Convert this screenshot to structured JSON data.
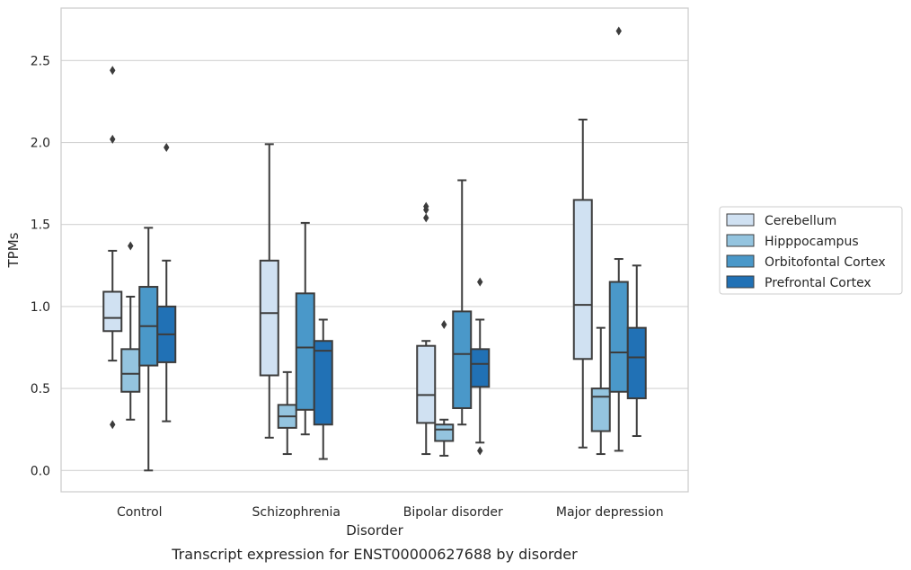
{
  "caption": "Transcript expression for ENST00000627688 by disorder",
  "chart_data": {
    "type": "box",
    "xlabel": "Disorder",
    "ylabel": "TPMs",
    "ylim": [
      -0.13,
      2.82
    ],
    "yticks": [
      0.0,
      0.5,
      1.0,
      1.5,
      2.0,
      2.5
    ],
    "ytick_labels": [
      "0.0",
      "0.5",
      "1.0",
      "1.5",
      "2.0",
      "2.5"
    ],
    "grid": "horizontal",
    "legend_position": "right",
    "categories": [
      "Control",
      "Schizophrenia",
      "Bipolar disorder",
      "Major depression"
    ],
    "series": [
      {
        "name": "Cerebellum",
        "color": "#d0e1f2",
        "boxes": [
          {
            "whislo": 0.67,
            "q1": 0.85,
            "med": 0.93,
            "q3": 1.09,
            "whishi": 1.34,
            "fliers": [
              2.44,
              2.02,
              0.28
            ]
          },
          {
            "whislo": 0.2,
            "q1": 0.58,
            "med": 0.96,
            "q3": 1.28,
            "whishi": 1.99,
            "fliers": []
          },
          {
            "whislo": 0.1,
            "q1": 0.29,
            "med": 0.46,
            "q3": 0.76,
            "whishi": 0.79,
            "fliers": [
              1.61,
              1.59,
              1.54
            ]
          },
          {
            "whislo": 0.14,
            "q1": 0.68,
            "med": 1.01,
            "q3": 1.65,
            "whishi": 2.14,
            "fliers": []
          }
        ]
      },
      {
        "name": "Hipppocampus",
        "color": "#94c4df",
        "boxes": [
          {
            "whislo": 0.31,
            "q1": 0.48,
            "med": 0.59,
            "q3": 0.74,
            "whishi": 1.06,
            "fliers": [
              1.37
            ]
          },
          {
            "whislo": 0.1,
            "q1": 0.26,
            "med": 0.33,
            "q3": 0.4,
            "whishi": 0.6,
            "fliers": []
          },
          {
            "whislo": 0.09,
            "q1": 0.18,
            "med": 0.25,
            "q3": 0.28,
            "whishi": 0.31,
            "fliers": [
              0.89
            ]
          },
          {
            "whislo": 0.1,
            "q1": 0.24,
            "med": 0.45,
            "q3": 0.5,
            "whishi": 0.87,
            "fliers": []
          }
        ]
      },
      {
        "name": "Orbitofontal Cortex",
        "color": "#4a98c9",
        "boxes": [
          {
            "whislo": 0.0,
            "q1": 0.64,
            "med": 0.88,
            "q3": 1.12,
            "whishi": 1.48,
            "fliers": []
          },
          {
            "whislo": 0.22,
            "q1": 0.37,
            "med": 0.75,
            "q3": 1.08,
            "whishi": 1.51,
            "fliers": []
          },
          {
            "whislo": 0.28,
            "q1": 0.38,
            "med": 0.71,
            "q3": 0.97,
            "whishi": 1.77,
            "fliers": []
          },
          {
            "whislo": 0.12,
            "q1": 0.48,
            "med": 0.72,
            "q3": 1.15,
            "whishi": 1.29,
            "fliers": [
              2.68
            ]
          }
        ]
      },
      {
        "name": "Prefrontal Cortex",
        "color": "#2171b5",
        "boxes": [
          {
            "whislo": 0.3,
            "q1": 0.66,
            "med": 0.83,
            "q3": 1.0,
            "whishi": 1.28,
            "fliers": [
              1.97
            ]
          },
          {
            "whislo": 0.07,
            "q1": 0.28,
            "med": 0.73,
            "q3": 0.79,
            "whishi": 0.92,
            "fliers": []
          },
          {
            "whislo": 0.17,
            "q1": 0.51,
            "med": 0.65,
            "q3": 0.74,
            "whishi": 0.92,
            "fliers": [
              1.15,
              0.12
            ]
          },
          {
            "whislo": 0.21,
            "q1": 0.44,
            "med": 0.69,
            "q3": 0.87,
            "whishi": 1.25,
            "fliers": []
          }
        ]
      }
    ]
  }
}
